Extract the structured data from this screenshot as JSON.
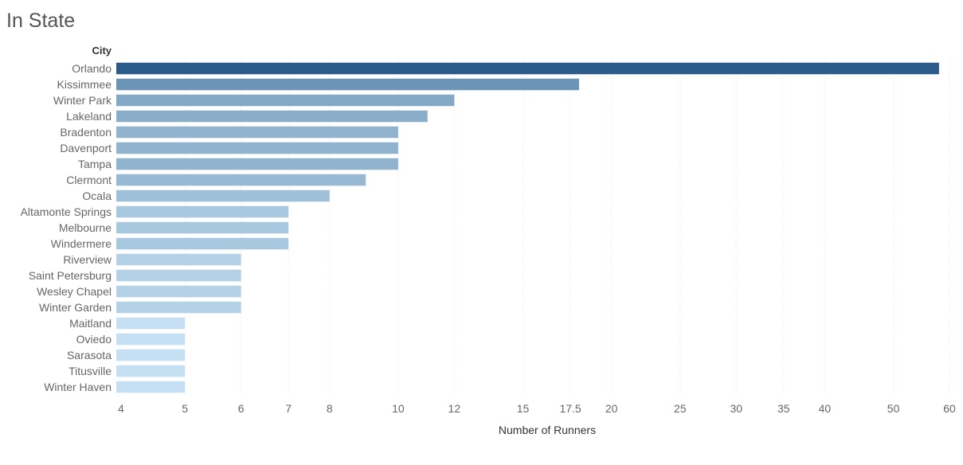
{
  "chart_data": {
    "type": "bar",
    "orientation": "horizontal",
    "title": "In State",
    "dimension_header": "City",
    "xlabel": "Number of Runners",
    "ylabel": "",
    "x_scale": "log",
    "xlim": [
      4,
      60
    ],
    "x_ticks": [
      4,
      5,
      6,
      7,
      8,
      10,
      12,
      15,
      17.5,
      20,
      25,
      30,
      35,
      40,
      50,
      60
    ],
    "grid": true,
    "categories": [
      "Orlando",
      "Kissimmee",
      "Winter Park",
      "Lakeland",
      "Bradenton",
      "Davenport",
      "Tampa",
      "Clermont",
      "Ocala",
      "Altamonte Springs",
      "Melbourne",
      "Windermere",
      "Riverview",
      "Saint Petersburg",
      "Wesley Chapel",
      "Winter Garden",
      "Maitland",
      "Oviedo",
      "Sarasota",
      "Titusville",
      "Winter Haven"
    ],
    "values": [
      58,
      18,
      12,
      11,
      10,
      10,
      10,
      9,
      8,
      7,
      7,
      7,
      6,
      6,
      6,
      6,
      5,
      5,
      5,
      5,
      5
    ],
    "color_scale": {
      "low": "#c4e0f2",
      "high": "#2b5c8a"
    }
  }
}
